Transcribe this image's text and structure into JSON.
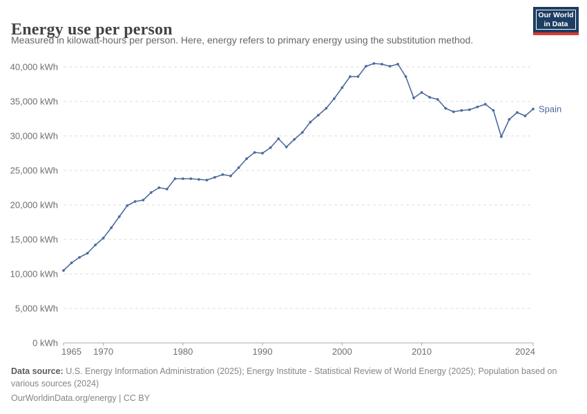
{
  "header": {
    "title": "Energy use per person",
    "subtitle": "Measured in kilowatt-hours per person. Here, energy refers to primary energy using the substitution method."
  },
  "logo": {
    "line1": "Our World",
    "line2": "in Data",
    "bg_color": "#1d3d63",
    "stripe_color": "#d73c2e"
  },
  "chart_data": {
    "type": "line",
    "title": "Energy use per person",
    "unit": "kWh",
    "grid": "dashed horizontal",
    "legend_position": "end-of-line label",
    "xlim": [
      1965,
      2024
    ],
    "ylim": [
      0,
      40000
    ],
    "x": [
      1965,
      1966,
      1967,
      1968,
      1969,
      1970,
      1971,
      1972,
      1973,
      1974,
      1975,
      1976,
      1977,
      1978,
      1979,
      1980,
      1981,
      1982,
      1983,
      1984,
      1985,
      1986,
      1987,
      1988,
      1989,
      1990,
      1991,
      1992,
      1993,
      1994,
      1995,
      1996,
      1997,
      1998,
      1999,
      2000,
      2001,
      2002,
      2003,
      2004,
      2005,
      2006,
      2007,
      2008,
      2009,
      2010,
      2011,
      2012,
      2013,
      2014,
      2015,
      2016,
      2017,
      2018,
      2019,
      2020,
      2021,
      2022,
      2023,
      2024
    ],
    "series": [
      {
        "name": "Spain",
        "color": "#4C6A9C",
        "values": [
          10500,
          11600,
          12400,
          13000,
          14200,
          15200,
          16700,
          18300,
          19900,
          20500,
          20700,
          21800,
          22500,
          22300,
          23800,
          23800,
          23800,
          23700,
          23600,
          24000,
          24400,
          24200,
          25400,
          26700,
          27600,
          27500,
          28300,
          29600,
          28400,
          29500,
          30500,
          32000,
          33000,
          34000,
          35400,
          37000,
          38600,
          38600,
          40100,
          40500,
          40400,
          40100,
          40400,
          38600,
          35500,
          36300,
          35600,
          35300,
          34000,
          33500,
          33700,
          33800,
          34200,
          34600,
          33700,
          29900,
          32400,
          33400,
          32900,
          33900
        ]
      }
    ],
    "yticks": [
      {
        "value": 0,
        "label": "0 kWh"
      },
      {
        "value": 5000,
        "label": "5,000 kWh"
      },
      {
        "value": 10000,
        "label": "10,000 kWh"
      },
      {
        "value": 15000,
        "label": "15,000 kWh"
      },
      {
        "value": 20000,
        "label": "20,000 kWh"
      },
      {
        "value": 25000,
        "label": "25,000 kWh"
      },
      {
        "value": 30000,
        "label": "30,000 kWh"
      },
      {
        "value": 35000,
        "label": "35,000 kWh"
      },
      {
        "value": 40000,
        "label": "40,000 kWh"
      }
    ],
    "xticks": [
      {
        "year": 1965,
        "label": "1965"
      },
      {
        "year": 1970,
        "label": "1970"
      },
      {
        "year": 1980,
        "label": "1980"
      },
      {
        "year": 1990,
        "label": "1990"
      },
      {
        "year": 2000,
        "label": "2000"
      },
      {
        "year": 2010,
        "label": "2010"
      },
      {
        "year": 2024,
        "label": "2024"
      }
    ]
  },
  "footer": {
    "datasource_label": "Data source:",
    "datasource_text": "U.S. Energy Information Administration (2025); Energy Institute - Statistical Review of World Energy (2025); Population based on various sources (2024)",
    "link_text": "OurWorldinData.org/energy",
    "license": "| CC BY"
  }
}
